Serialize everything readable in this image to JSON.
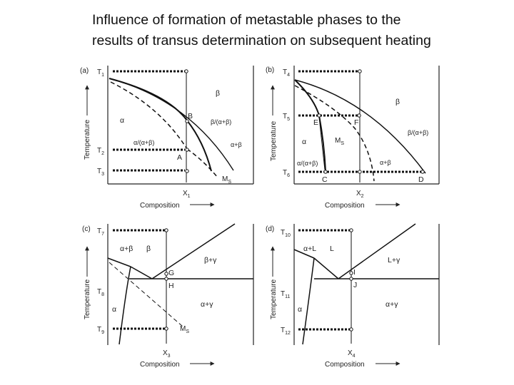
{
  "slide": {
    "title_line1": "Influence of formation of metastable phases to the",
    "title_line2": "results of transus determination on subsequent heating"
  },
  "axis": {
    "y_label": "Temperature",
    "x_label": "Composition"
  },
  "panels": {
    "a": {
      "tag": "(a)",
      "temps": [
        {
          "t": "T",
          "s": "1"
        },
        {
          "t": "T",
          "s": "2"
        },
        {
          "t": "T",
          "s": "3"
        }
      ],
      "x": {
        "t": "X",
        "s": "1"
      },
      "points": [
        "B",
        "A"
      ],
      "phases": {
        "beta": "β",
        "alpha": "α",
        "b_ab": "β/(α+β)",
        "a_ab": "α/(α+β)",
        "apb": "α+β",
        "ms": {
          "t": "M",
          "s": "S"
        }
      }
    },
    "b": {
      "tag": "(b)",
      "temps": [
        {
          "t": "T",
          "s": "4"
        },
        {
          "t": "T",
          "s": "5"
        },
        {
          "t": "T",
          "s": "6"
        }
      ],
      "x": {
        "t": "X",
        "s": "2"
      },
      "points": [
        "E",
        "F",
        "C",
        "D"
      ],
      "phases": {
        "beta": "β",
        "alpha": "α",
        "b_ab": "β/(α+β)",
        "a_ab": "α/(α+β)",
        "apb": "α+β",
        "ms": {
          "t": "M",
          "s": "S"
        }
      }
    },
    "c": {
      "tag": "(c)",
      "temps": [
        {
          "t": "T",
          "s": "7"
        },
        {
          "t": "T",
          "s": "8"
        },
        {
          "t": "T",
          "s": "9"
        }
      ],
      "x": {
        "t": "X",
        "s": "3"
      },
      "points": [
        "G",
        "H"
      ],
      "phases": {
        "apb": "α+β",
        "beta": "β",
        "bpg": "β+γ",
        "alpha": "α",
        "apg": "α+γ",
        "ms": {
          "t": "M",
          "s": "S"
        }
      }
    },
    "d": {
      "tag": "(d)",
      "temps": [
        {
          "t": "T",
          "s": "10"
        },
        {
          "t": "T",
          "s": "11"
        },
        {
          "t": "T",
          "s": "12"
        }
      ],
      "x": {
        "t": "X",
        "s": "4"
      },
      "points": [
        "I",
        "J"
      ],
      "phases": {
        "apl": "α+L",
        "l": "L",
        "lpg": "L+γ",
        "alpha": "α",
        "apg": "α+γ"
      }
    }
  }
}
